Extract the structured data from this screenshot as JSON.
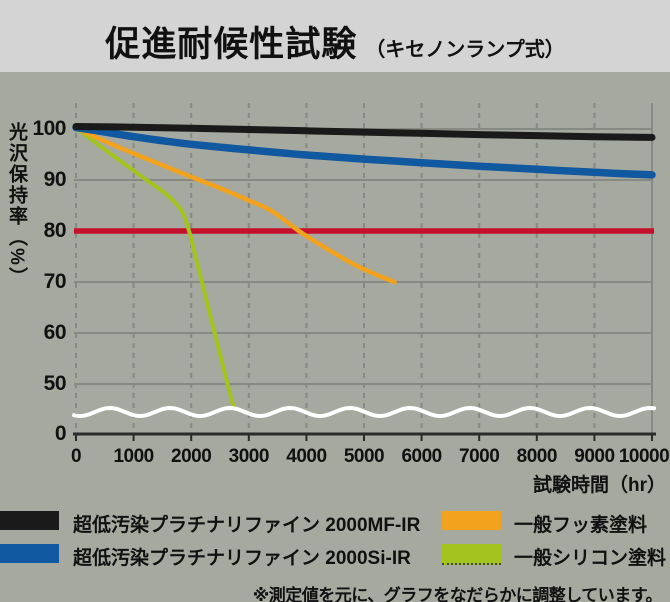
{
  "title": {
    "main": "促進耐候性試験",
    "sub": "（キセノンランプ式）"
  },
  "note": "※測定値を元に、グラフをなだらかに調整しています。",
  "colors": {
    "page_background": "#a6a99f",
    "title_band_background": "#d4d4d4",
    "grid": "#878a82",
    "axis": "#2b2b2b",
    "text": "#141414",
    "axis_break_wave": "#ffffff",
    "threshold_red": "#c4102a"
  },
  "chart_data": {
    "type": "line",
    "title": "促進耐候性試験（キセノンランプ式）",
    "xlabel": "試験時間（hr）",
    "ylabel": "光沢保持率（%）",
    "x_ticks": [
      0,
      1000,
      2000,
      3000,
      4000,
      5000,
      6000,
      7000,
      8000,
      9000,
      10000
    ],
    "y_ticks": [
      100,
      90,
      80,
      70,
      60,
      50
    ],
    "origin_label": "0",
    "y_axis_break": true,
    "xlim": [
      0,
      10000
    ],
    "ylim_shown": [
      45,
      102
    ],
    "grid": true,
    "legend_position": "bottom",
    "threshold_line": {
      "value": 80,
      "color": "#c4102a"
    },
    "series": [
      {
        "name": "超低汚染プラチナリファイン 2000MF-IR",
        "color": "#1a1a1a",
        "width": 7,
        "points": [
          [
            0,
            100.5
          ],
          [
            1000,
            100.35
          ],
          [
            2000,
            100.15
          ],
          [
            3000,
            99.9
          ],
          [
            4000,
            99.65
          ],
          [
            5000,
            99.4
          ],
          [
            6000,
            99.15
          ],
          [
            7000,
            98.9
          ],
          [
            8000,
            98.7
          ],
          [
            9000,
            98.5
          ],
          [
            10000,
            98.35
          ]
        ]
      },
      {
        "name": "超低汚染プラチナリファイン 2000Si-IR",
        "color": "#10589f",
        "width": 7.5,
        "points": [
          [
            0,
            100.3
          ],
          [
            500,
            99.4
          ],
          [
            1000,
            98.5
          ],
          [
            1500,
            97.7
          ],
          [
            2000,
            97.0
          ],
          [
            3000,
            95.9
          ],
          [
            4000,
            94.9
          ],
          [
            5000,
            94.1
          ],
          [
            6000,
            93.4
          ],
          [
            7000,
            92.7
          ],
          [
            8000,
            92.1
          ],
          [
            9000,
            91.5
          ],
          [
            10000,
            91.0
          ]
        ]
      },
      {
        "name": "一般フッ素塗料",
        "color": "#f2a21c",
        "width": 4.5,
        "points": [
          [
            0,
            100.2
          ],
          [
            500,
            97.6
          ],
          [
            1000,
            95.2
          ],
          [
            1500,
            92.9
          ],
          [
            2000,
            90.6
          ],
          [
            2500,
            88.4
          ],
          [
            3000,
            86.0
          ],
          [
            3400,
            83.9
          ],
          [
            3870,
            80.0
          ],
          [
            4300,
            76.9
          ],
          [
            4800,
            73.6
          ],
          [
            5200,
            71.5
          ],
          [
            5530,
            70.0
          ]
        ]
      },
      {
        "name": "一般シリコン塗料",
        "color": "#a3c41c",
        "width": 4,
        "points": [
          [
            0,
            100.2
          ],
          [
            400,
            96.8
          ],
          [
            800,
            93.5
          ],
          [
            1200,
            90.2
          ],
          [
            1500,
            87.8
          ],
          [
            1700,
            85.8
          ],
          [
            1850,
            83.6
          ],
          [
            1975,
            79.5
          ],
          [
            2100,
            73.8
          ],
          [
            2300,
            64.8
          ],
          [
            2500,
            55.8
          ],
          [
            2650,
            49.2
          ],
          [
            2740,
            45.2
          ]
        ]
      }
    ]
  }
}
